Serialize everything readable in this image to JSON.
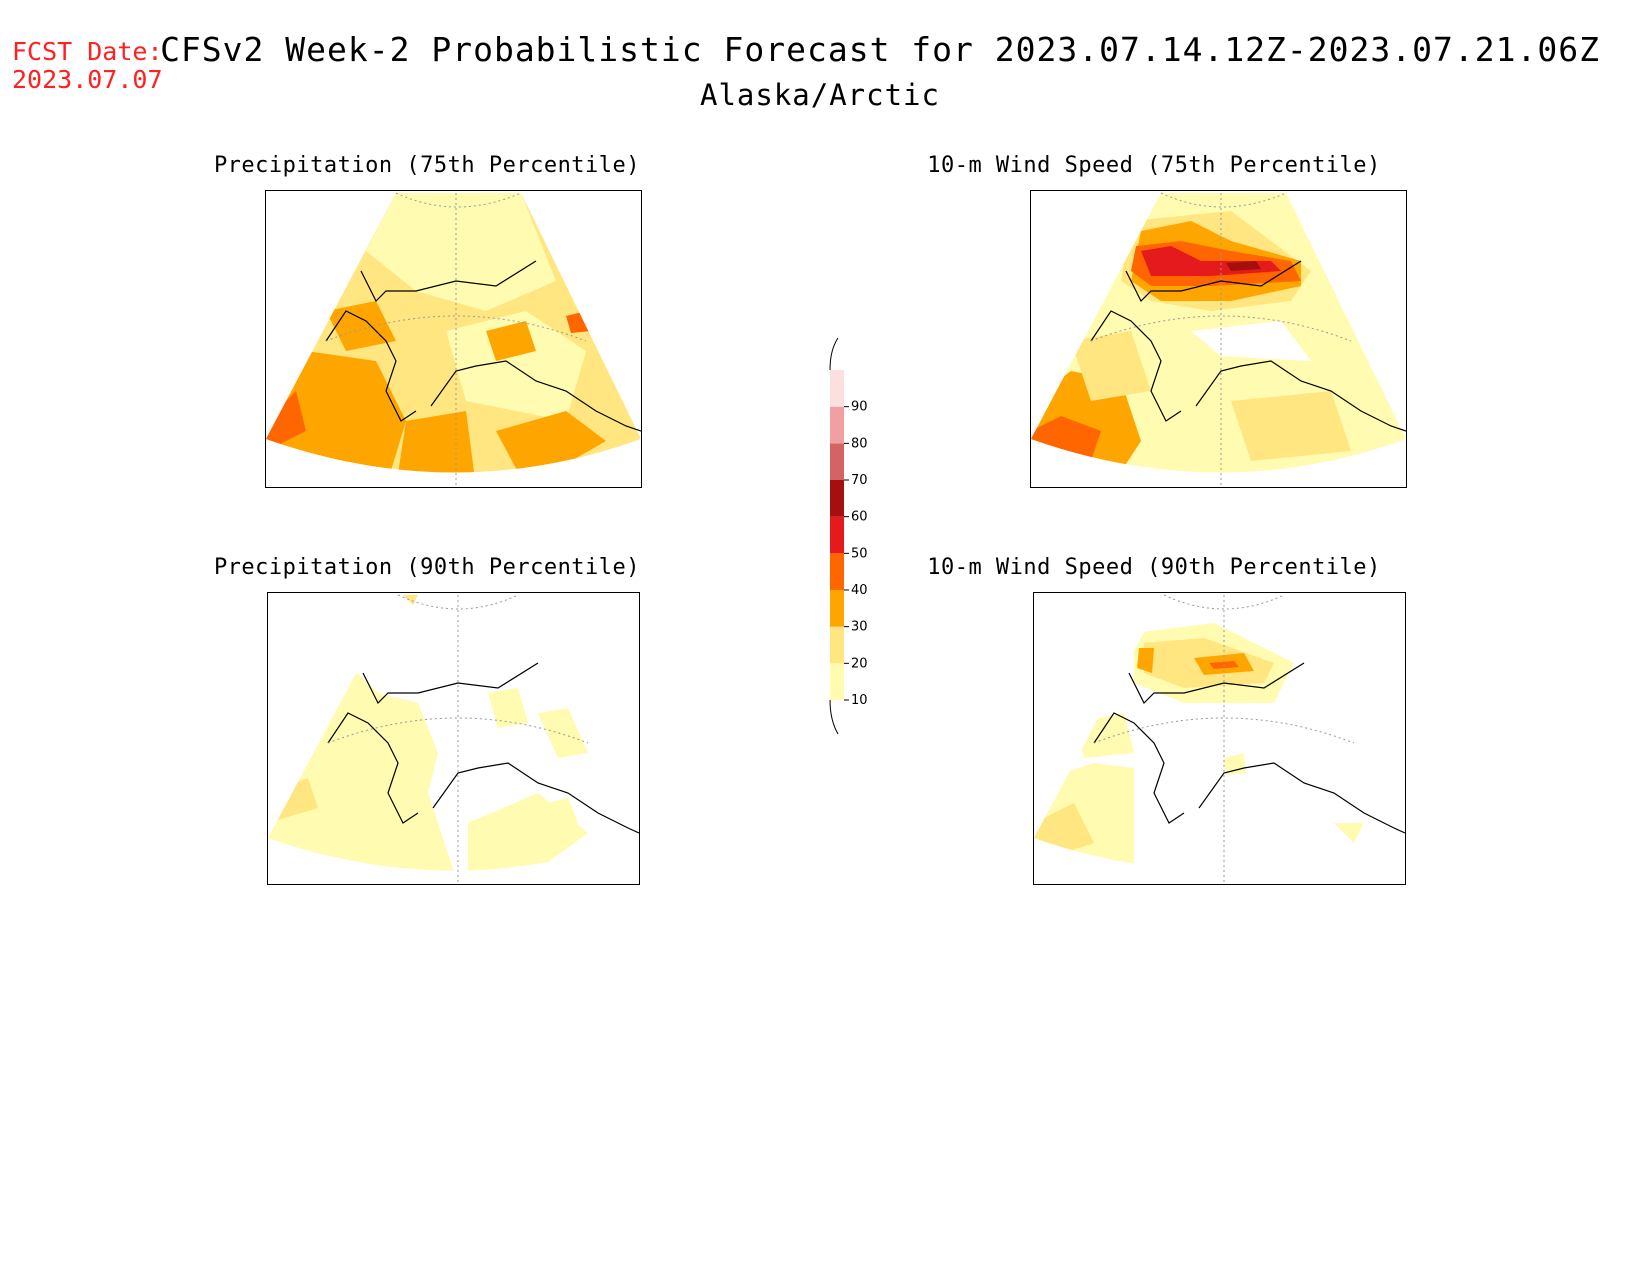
{
  "header": {
    "fcst_label": "FCST Date:",
    "fcst_date": "2023.07.07",
    "title": "CFSv2 Week-2 Probabilistic Forecast for 2023.07.14.12Z-2023.07.21.06Z",
    "subtitle": "Alaska/Arctic"
  },
  "panels": [
    {
      "title": "Precipitation (75th Percentile)"
    },
    {
      "title": "10-m Wind Speed (75th Percentile)"
    },
    {
      "title": "Precipitation (90th Percentile)"
    },
    {
      "title": "10-m Wind Speed (90th Percentile)"
    }
  ],
  "colorbar": {
    "levels": [
      "10",
      "20",
      "30",
      "40",
      "50",
      "60",
      "70",
      "80",
      "90"
    ],
    "colors": [
      "#fffbb0",
      "#ffe680",
      "#ffa500",
      "#ff6600",
      "#e41a1c",
      "#a50f0f",
      "#d46464",
      "#f0a0a0",
      "#fbe0e0"
    ]
  }
}
